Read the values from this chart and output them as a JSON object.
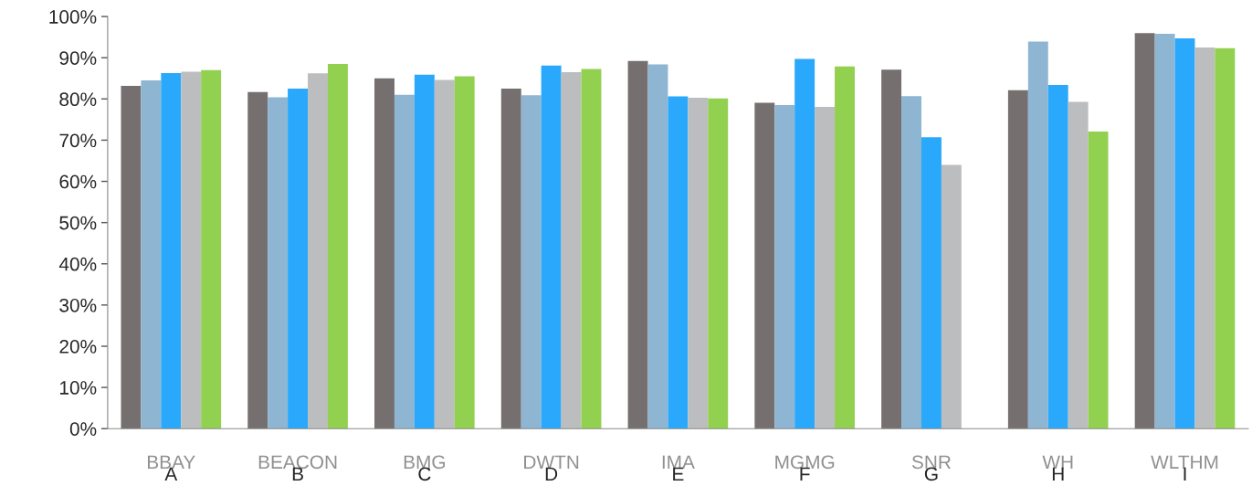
{
  "chart_data": {
    "type": "bar",
    "categories": [
      "A",
      "B",
      "C",
      "D",
      "E",
      "F",
      "G",
      "H",
      "I"
    ],
    "series": [
      {
        "color": "#75706f",
        "values": [
          83.2,
          81.7,
          85.0,
          82.5,
          89.2,
          79.1,
          87.1,
          82.1,
          96.0
        ]
      },
      {
        "color": "#8eb5d2",
        "values": [
          84.5,
          80.4,
          81.0,
          80.9,
          88.4,
          78.5,
          80.7,
          93.9,
          95.8
        ]
      },
      {
        "color": "#29a8fc",
        "values": [
          86.3,
          82.5,
          85.9,
          88.1,
          80.6,
          89.7,
          70.7,
          83.4,
          94.7
        ]
      },
      {
        "color": "#bcbdbf",
        "values": [
          86.6,
          86.2,
          84.6,
          86.5,
          80.3,
          78.1,
          64.0,
          79.3,
          92.5
        ]
      },
      {
        "color": "#92d050",
        "values": [
          87.0,
          88.5,
          85.5,
          87.3,
          80.1,
          87.9,
          null,
          72.1,
          92.3
        ]
      }
    ],
    "ylim": [
      0,
      100
    ],
    "yticks": [
      {
        "value": 0,
        "label": "0%"
      },
      {
        "value": 10,
        "label": "10%"
      },
      {
        "value": 20,
        "label": "20%"
      },
      {
        "value": 30,
        "label": "30%"
      },
      {
        "value": 40,
        "label": "40%"
      },
      {
        "value": 50,
        "label": "50%"
      },
      {
        "value": 60,
        "label": "60%"
      },
      {
        "value": 70,
        "label": "70%"
      },
      {
        "value": 80,
        "label": "80%"
      },
      {
        "value": 90,
        "label": "90%"
      },
      {
        "value": 100,
        "label": "100%"
      }
    ],
    "annotations": [
      "BBAY",
      "BEACON",
      "BMG",
      "DWTN",
      "IMA",
      "MGMG",
      "SNR",
      "WH",
      "WLTHM"
    ],
    "grid": false,
    "legend": false
  }
}
